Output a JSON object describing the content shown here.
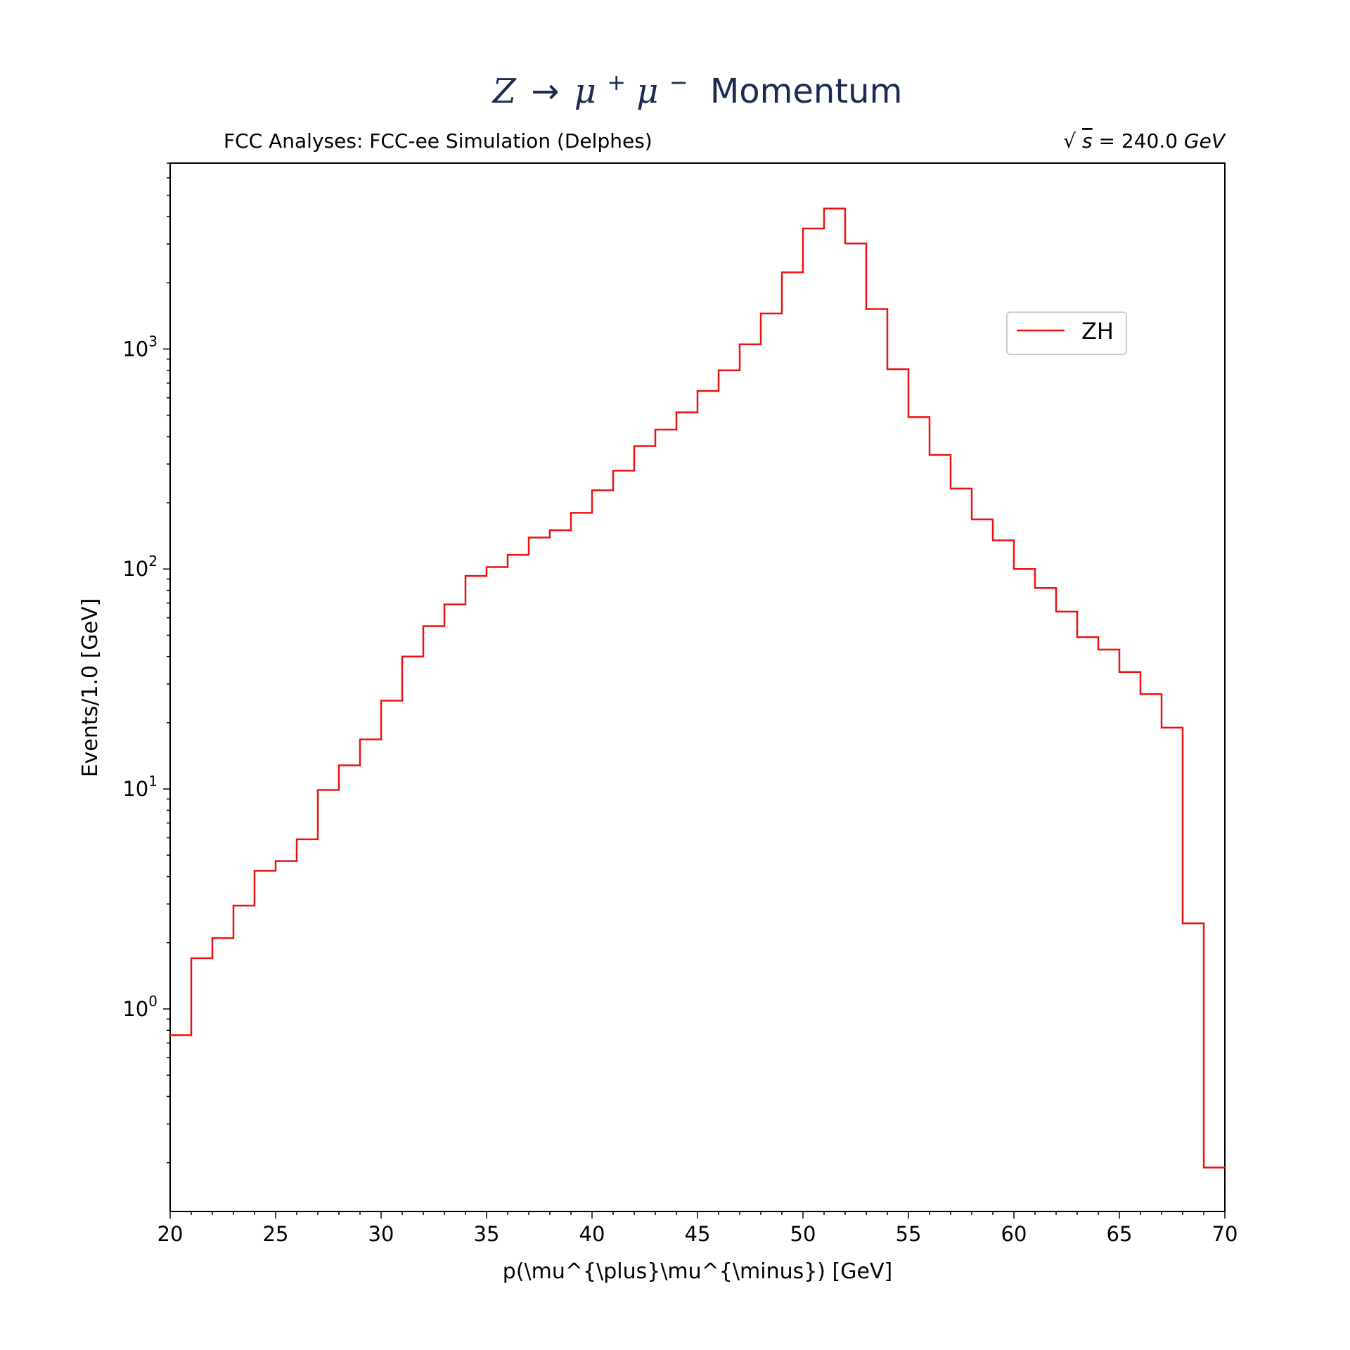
{
  "title": {
    "z": "Z",
    "arrow": "→",
    "mu": "μ",
    "plus": "+",
    "minus": "−",
    "word": "Momentum"
  },
  "subtitle_left": "FCC Analyses: FCC-ee Simulation (Delphes)",
  "subtitle_right": {
    "sqrt": "√",
    "s": "s",
    "rest": " = 240.0",
    "unit": "GeV"
  },
  "colors": {
    "line": "#ee1111",
    "title": "#1a2a52",
    "axis": "#000000"
  },
  "chart_data": {
    "type": "line",
    "style": "step-histogram",
    "xlabel": "p(\\mu^{\\plus}\\mu^{\\minus}) [GeV]",
    "ylabel": "Events/1.0 [GeV]",
    "xlim": [
      20,
      70
    ],
    "ylim": [
      0.12,
      7000
    ],
    "yscale": "log",
    "grid": false,
    "legend_position": "upper-right",
    "x_ticks": [
      "20",
      "25",
      "30",
      "35",
      "40",
      "45",
      "50",
      "55",
      "60",
      "65",
      "70"
    ],
    "y_ticks": [
      {
        "base": "10",
        "exp": "0",
        "value": 1
      },
      {
        "base": "10",
        "exp": "1",
        "value": 10
      },
      {
        "base": "10",
        "exp": "2",
        "value": 100
      },
      {
        "base": "10",
        "exp": "3",
        "value": 1000
      }
    ],
    "bin_edges": [
      20,
      21,
      22,
      23,
      24,
      25,
      26,
      27,
      28,
      29,
      30,
      31,
      32,
      33,
      34,
      35,
      36,
      37,
      38,
      39,
      40,
      41,
      42,
      43,
      44,
      45,
      46,
      47,
      48,
      49,
      50,
      51,
      52,
      53,
      54,
      55,
      56,
      57,
      58,
      59,
      60,
      61,
      62,
      63,
      64,
      65,
      66,
      67,
      68,
      69,
      70
    ],
    "series": [
      {
        "name": "ZH",
        "values": [
          0.76,
          1.7,
          2.1,
          2.95,
          4.25,
          4.7,
          5.9,
          9.9,
          12.8,
          16.8,
          25.2,
          40,
          55,
          69,
          93,
          102,
          116,
          139,
          150,
          180,
          228,
          280,
          362,
          430,
          515,
          645,
          800,
          1050,
          1450,
          2230,
          3530,
          4350,
          3020,
          1520,
          810,
          490,
          330,
          232,
          168,
          135,
          100,
          82,
          64,
          49,
          43,
          34,
          27,
          19,
          2.45,
          0.19
        ]
      }
    ]
  }
}
